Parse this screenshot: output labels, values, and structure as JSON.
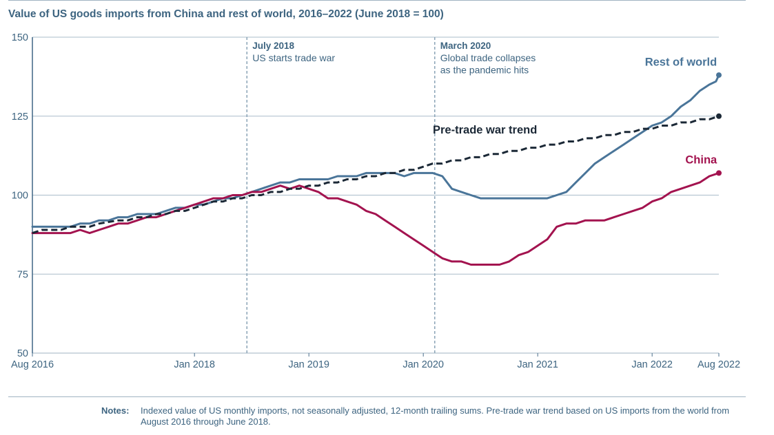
{
  "title": "Value of US goods imports from China and rest of world, 2016–2022 (June 2018 = 100)",
  "notes": {
    "label": "Notes:",
    "text": "Indexed value of US monthly imports, not seasonally adjusted, 12-month trailing sums. Pre-trade war trend based on US imports from the world from August 2016 through June 2018."
  },
  "chart_data": {
    "type": "line",
    "title": "Value of US goods imports from China and rest of world, 2016–2022 (June 2018 = 100)",
    "xlabel": "",
    "ylabel": "",
    "ylim": [
      50,
      150
    ],
    "yticks": [
      50,
      75,
      100,
      125,
      150
    ],
    "xlim": [
      0,
      72
    ],
    "xticks": [
      {
        "label": "Aug 2016",
        "x": 0
      },
      {
        "label": "Jan 2018",
        "x": 17
      },
      {
        "label": "Jan 2019",
        "x": 29
      },
      {
        "label": "Jan 2020",
        "x": 41
      },
      {
        "label": "Jan 2021",
        "x": 53
      },
      {
        "label": "Jan 2022",
        "x": 65
      },
      {
        "label": "Aug 2022",
        "x": 72
      }
    ],
    "x_unit": "months since Aug 2016",
    "annotations": [
      {
        "x": 22.5,
        "title": "July 2018",
        "lines": [
          "US starts trade war"
        ]
      },
      {
        "x": 42.2,
        "title": "March 2020",
        "lines": [
          "Global trade collapses",
          "as the pandemic hits"
        ]
      }
    ],
    "series": [
      {
        "name": "Rest of world",
        "color": "#4a7599",
        "dashed": false,
        "end_dot": true,
        "points": [
          [
            0,
            90
          ],
          [
            3,
            90
          ],
          [
            4,
            90
          ],
          [
            5,
            91
          ],
          [
            6,
            91
          ],
          [
            7,
            92
          ],
          [
            8,
            92
          ],
          [
            9,
            93
          ],
          [
            10,
            93
          ],
          [
            11,
            94
          ],
          [
            12,
            94
          ],
          [
            13,
            94
          ],
          [
            14,
            95
          ],
          [
            15,
            96
          ],
          [
            16,
            96
          ],
          [
            17,
            97
          ],
          [
            18,
            97
          ],
          [
            19,
            98
          ],
          [
            20,
            99
          ],
          [
            21,
            99
          ],
          [
            22,
            100
          ],
          [
            23,
            101
          ],
          [
            24,
            102
          ],
          [
            25,
            103
          ],
          [
            26,
            104
          ],
          [
            27,
            104
          ],
          [
            28,
            105
          ],
          [
            29,
            105
          ],
          [
            30,
            105
          ],
          [
            31,
            105
          ],
          [
            32,
            106
          ],
          [
            33,
            106
          ],
          [
            34,
            106
          ],
          [
            35,
            107
          ],
          [
            36,
            107
          ],
          [
            37,
            107
          ],
          [
            38,
            107
          ],
          [
            39,
            106
          ],
          [
            40,
            107
          ],
          [
            41,
            107
          ],
          [
            42,
            107
          ],
          [
            43,
            106
          ],
          [
            44,
            102
          ],
          [
            45,
            101
          ],
          [
            46,
            100
          ],
          [
            47,
            99
          ],
          [
            48,
            99
          ],
          [
            50,
            99
          ],
          [
            52,
            99
          ],
          [
            54,
            99
          ],
          [
            55,
            100
          ],
          [
            56,
            101
          ],
          [
            57,
            104
          ],
          [
            58,
            107
          ],
          [
            59,
            110
          ],
          [
            60,
            112
          ],
          [
            61,
            114
          ],
          [
            62,
            116
          ],
          [
            63,
            118
          ],
          [
            64,
            120
          ],
          [
            65,
            122
          ],
          [
            66,
            123
          ],
          [
            67,
            125
          ],
          [
            68,
            128
          ],
          [
            69,
            130
          ],
          [
            70,
            133
          ],
          [
            71,
            135
          ],
          [
            71.7,
            136
          ],
          [
            72,
            138
          ]
        ]
      },
      {
        "name": "China",
        "color": "#a3134f",
        "dashed": false,
        "end_dot": true,
        "points": [
          [
            0,
            88
          ],
          [
            4,
            88
          ],
          [
            5,
            89
          ],
          [
            6,
            88
          ],
          [
            7,
            89
          ],
          [
            8,
            90
          ],
          [
            9,
            91
          ],
          [
            10,
            91
          ],
          [
            11,
            92
          ],
          [
            12,
            93
          ],
          [
            13,
            93
          ],
          [
            14,
            94
          ],
          [
            15,
            95
          ],
          [
            16,
            96
          ],
          [
            17,
            97
          ],
          [
            18,
            98
          ],
          [
            19,
            99
          ],
          [
            20,
            99
          ],
          [
            21,
            100
          ],
          [
            22,
            100
          ],
          [
            23,
            101
          ],
          [
            24,
            101
          ],
          [
            25,
            102
          ],
          [
            26,
            103
          ],
          [
            27,
            102
          ],
          [
            28,
            103
          ],
          [
            29,
            102
          ],
          [
            30,
            101
          ],
          [
            31,
            99
          ],
          [
            32,
            99
          ],
          [
            33,
            98
          ],
          [
            34,
            97
          ],
          [
            35,
            95
          ],
          [
            36,
            94
          ],
          [
            37,
            92
          ],
          [
            38,
            90
          ],
          [
            39,
            88
          ],
          [
            40,
            86
          ],
          [
            41,
            84
          ],
          [
            42,
            82
          ],
          [
            43,
            80
          ],
          [
            44,
            79
          ],
          [
            45,
            79
          ],
          [
            46,
            78
          ],
          [
            47,
            78
          ],
          [
            48,
            78
          ],
          [
            49,
            78
          ],
          [
            50,
            79
          ],
          [
            51,
            81
          ],
          [
            52,
            82
          ],
          [
            53,
            84
          ],
          [
            54,
            86
          ],
          [
            55,
            90
          ],
          [
            56,
            91
          ],
          [
            57,
            91
          ],
          [
            58,
            92
          ],
          [
            59,
            92
          ],
          [
            60,
            92
          ],
          [
            61,
            93
          ],
          [
            62,
            94
          ],
          [
            63,
            95
          ],
          [
            64,
            96
          ],
          [
            65,
            98
          ],
          [
            66,
            99
          ],
          [
            67,
            101
          ],
          [
            68,
            102
          ],
          [
            69,
            103
          ],
          [
            70,
            104
          ],
          [
            71,
            106
          ],
          [
            72,
            107
          ]
        ]
      },
      {
        "name": "Pre-trade war trend",
        "color": "#1b2836",
        "dashed": true,
        "end_dot": true,
        "points": [
          [
            0,
            88
          ],
          [
            1,
            89
          ],
          [
            3,
            89
          ],
          [
            4,
            90
          ],
          [
            6,
            90
          ],
          [
            7,
            91
          ],
          [
            9,
            92
          ],
          [
            10,
            92
          ],
          [
            11,
            93
          ],
          [
            12,
            93
          ],
          [
            13,
            94
          ],
          [
            14,
            94
          ],
          [
            15,
            95
          ],
          [
            16,
            95
          ],
          [
            17,
            96
          ],
          [
            18,
            97
          ],
          [
            19,
            98
          ],
          [
            20,
            98
          ],
          [
            21,
            99
          ],
          [
            22,
            99
          ],
          [
            23,
            100
          ],
          [
            24,
            100
          ],
          [
            25,
            101
          ],
          [
            26,
            101
          ],
          [
            27,
            102
          ],
          [
            28,
            102
          ],
          [
            29,
            103
          ],
          [
            30,
            103
          ],
          [
            31,
            104
          ],
          [
            32,
            104
          ],
          [
            33,
            105
          ],
          [
            34,
            105
          ],
          [
            35,
            106
          ],
          [
            36,
            106
          ],
          [
            37,
            107
          ],
          [
            38,
            107
          ],
          [
            39,
            108
          ],
          [
            40,
            108
          ],
          [
            41,
            109
          ],
          [
            42,
            110
          ],
          [
            43,
            110
          ],
          [
            44,
            111
          ],
          [
            45,
            111
          ],
          [
            46,
            112
          ],
          [
            47,
            112
          ],
          [
            48,
            113
          ],
          [
            49,
            113
          ],
          [
            50,
            114
          ],
          [
            51,
            114
          ],
          [
            52,
            115
          ],
          [
            53,
            115
          ],
          [
            54,
            116
          ],
          [
            55,
            116
          ],
          [
            56,
            117
          ],
          [
            57,
            117
          ],
          [
            58,
            118
          ],
          [
            59,
            118
          ],
          [
            60,
            119
          ],
          [
            61,
            119
          ],
          [
            62,
            120
          ],
          [
            63,
            120
          ],
          [
            64,
            121
          ],
          [
            65,
            121
          ],
          [
            66,
            122
          ],
          [
            67,
            122
          ],
          [
            68,
            123
          ],
          [
            69,
            123
          ],
          [
            70,
            124
          ],
          [
            71,
            124
          ],
          [
            72,
            125
          ]
        ]
      }
    ],
    "series_labels": [
      {
        "series": "Rest of world",
        "text": "Rest of world",
        "anchor_x": 71.8,
        "anchor_y": 141,
        "align": "end"
      },
      {
        "series": "China",
        "text": "China",
        "anchor_x": 71.8,
        "anchor_y": 110,
        "align": "end"
      },
      {
        "series": "Pre-trade war trend",
        "text": "Pre-trade war trend",
        "anchor_x": 42,
        "anchor_y": 119.5,
        "align": "start"
      }
    ]
  }
}
